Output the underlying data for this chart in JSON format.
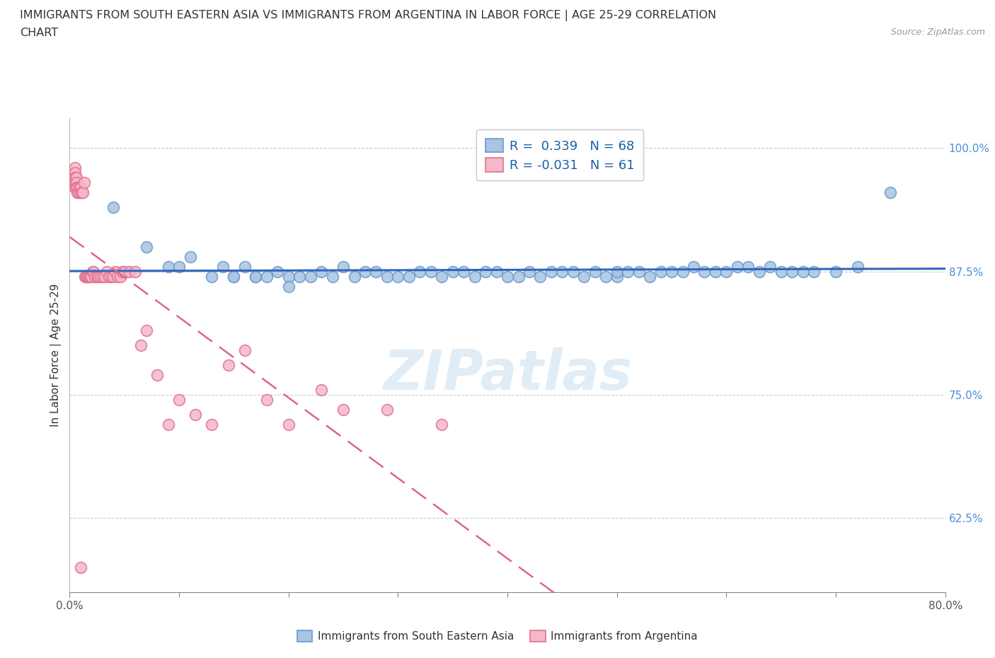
{
  "title_line1": "IMMIGRANTS FROM SOUTH EASTERN ASIA VS IMMIGRANTS FROM ARGENTINA IN LABOR FORCE | AGE 25-29 CORRELATION",
  "title_line2": "CHART",
  "source_text": "Source: ZipAtlas.com",
  "ylabel": "In Labor Force | Age 25-29",
  "xlim": [
    0.0,
    0.8
  ],
  "ylim": [
    0.55,
    1.03
  ],
  "yticks": [
    0.625,
    0.75,
    0.875,
    1.0
  ],
  "yticklabels": [
    "62.5%",
    "75.0%",
    "87.5%",
    "100.0%"
  ],
  "xticks": [
    0.0,
    0.1,
    0.2,
    0.3,
    0.4,
    0.5,
    0.6,
    0.7,
    0.8
  ],
  "xticklabels_show": [
    "0.0%",
    "",
    "",
    "",
    "",
    "",
    "",
    "",
    "80.0%"
  ],
  "legend1_label": "R =  0.339   N = 68",
  "legend2_label": "R = -0.031   N = 61",
  "series1_color": "#aac4e2",
  "series1_edge": "#6699cc",
  "series2_color": "#f5b8c8",
  "series2_edge": "#e07090",
  "trendline1_color": "#3366bb",
  "trendline2_color": "#dd6688",
  "watermark": "ZIPatlas",
  "bottom_label1": "Immigrants from South Eastern Asia",
  "bottom_label2": "Immigrants from Argentina",
  "series1_x": [
    0.04,
    0.07,
    0.09,
    0.1,
    0.11,
    0.13,
    0.14,
    0.15,
    0.15,
    0.16,
    0.17,
    0.17,
    0.18,
    0.19,
    0.2,
    0.2,
    0.21,
    0.22,
    0.23,
    0.24,
    0.25,
    0.26,
    0.27,
    0.28,
    0.29,
    0.3,
    0.31,
    0.32,
    0.33,
    0.34,
    0.35,
    0.36,
    0.37,
    0.38,
    0.39,
    0.4,
    0.41,
    0.42,
    0.43,
    0.44,
    0.45,
    0.46,
    0.47,
    0.48,
    0.49,
    0.5,
    0.5,
    0.51,
    0.52,
    0.53,
    0.54,
    0.55,
    0.56,
    0.57,
    0.58,
    0.59,
    0.6,
    0.61,
    0.62,
    0.63,
    0.64,
    0.65,
    0.66,
    0.67,
    0.68,
    0.7,
    0.72,
    0.75
  ],
  "series1_y": [
    0.94,
    0.9,
    0.88,
    0.88,
    0.89,
    0.87,
    0.88,
    0.87,
    0.87,
    0.88,
    0.87,
    0.87,
    0.87,
    0.875,
    0.87,
    0.86,
    0.87,
    0.87,
    0.875,
    0.87,
    0.88,
    0.87,
    0.875,
    0.875,
    0.87,
    0.87,
    0.87,
    0.875,
    0.875,
    0.87,
    0.875,
    0.875,
    0.87,
    0.875,
    0.875,
    0.87,
    0.87,
    0.875,
    0.87,
    0.875,
    0.875,
    0.875,
    0.87,
    0.875,
    0.87,
    0.87,
    0.875,
    0.875,
    0.875,
    0.87,
    0.875,
    0.875,
    0.875,
    0.88,
    0.875,
    0.875,
    0.875,
    0.88,
    0.88,
    0.875,
    0.88,
    0.875,
    0.875,
    0.875,
    0.875,
    0.875,
    0.88,
    0.955
  ],
  "series2_x": [
    0.005,
    0.005,
    0.005,
    0.005,
    0.005,
    0.006,
    0.006,
    0.006,
    0.007,
    0.007,
    0.008,
    0.009,
    0.01,
    0.01,
    0.01,
    0.011,
    0.012,
    0.013,
    0.014,
    0.015,
    0.015,
    0.016,
    0.017,
    0.018,
    0.019,
    0.02,
    0.021,
    0.022,
    0.023,
    0.025,
    0.026,
    0.028,
    0.03,
    0.032,
    0.034,
    0.036,
    0.038,
    0.04,
    0.042,
    0.044,
    0.046,
    0.048,
    0.05,
    0.055,
    0.06,
    0.065,
    0.07,
    0.08,
    0.09,
    0.1,
    0.115,
    0.13,
    0.145,
    0.16,
    0.18,
    0.2,
    0.23,
    0.25,
    0.29,
    0.34,
    0.01
  ],
  "series2_y": [
    0.98,
    0.975,
    0.97,
    0.965,
    0.96,
    0.97,
    0.965,
    0.96,
    0.96,
    0.955,
    0.955,
    0.96,
    0.96,
    0.955,
    0.96,
    0.955,
    0.955,
    0.965,
    0.87,
    0.87,
    0.87,
    0.87,
    0.87,
    0.87,
    0.87,
    0.87,
    0.875,
    0.875,
    0.87,
    0.87,
    0.87,
    0.87,
    0.87,
    0.87,
    0.875,
    0.87,
    0.87,
    0.87,
    0.875,
    0.87,
    0.87,
    0.875,
    0.875,
    0.875,
    0.875,
    0.8,
    0.815,
    0.77,
    0.72,
    0.745,
    0.73,
    0.72,
    0.78,
    0.795,
    0.745,
    0.72,
    0.755,
    0.735,
    0.735,
    0.72,
    0.575
  ]
}
